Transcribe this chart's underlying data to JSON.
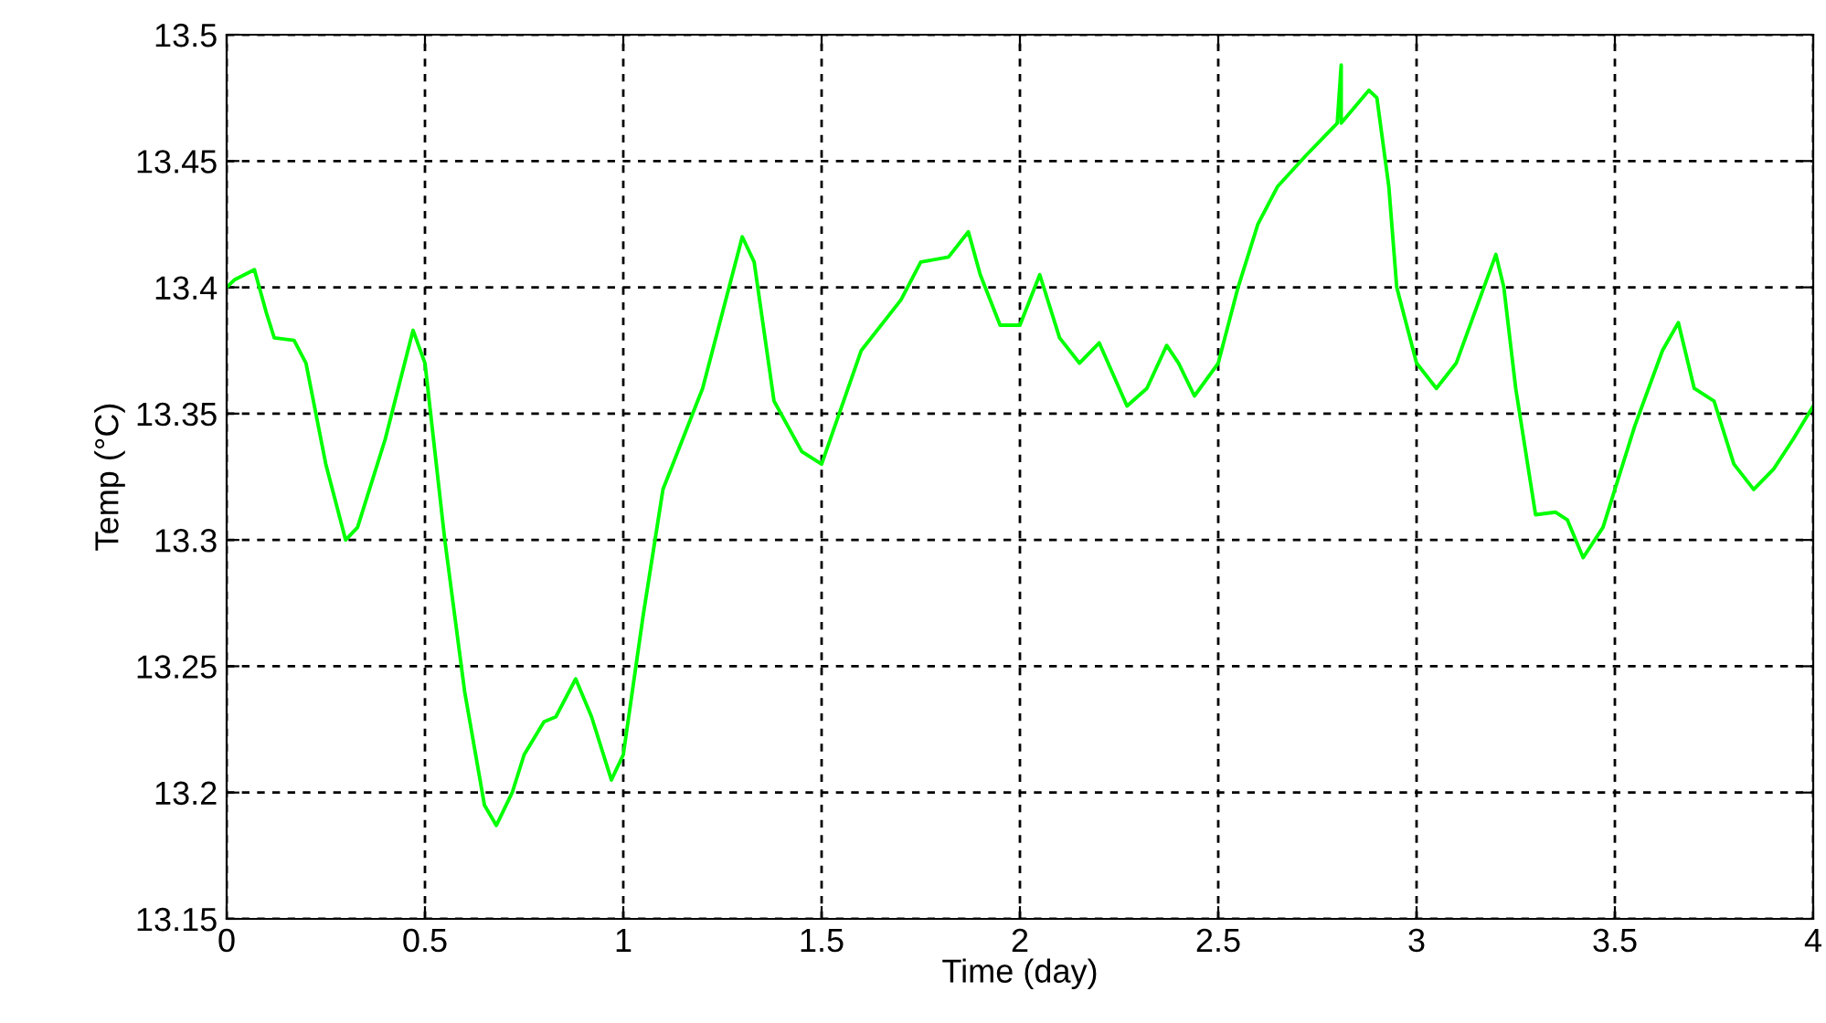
{
  "chart_data": {
    "type": "line",
    "xlabel": "Time (day)",
    "ylabel": "Temp (°C)",
    "xlim": [
      0,
      4
    ],
    "xticks": [
      0,
      0.5,
      1,
      1.5,
      2,
      2.5,
      3,
      3.5,
      4
    ],
    "ylim": [
      13.15,
      13.5
    ],
    "yticks": [
      13.15,
      13.2,
      13.25,
      13.3,
      13.35,
      13.4,
      13.45,
      13.5
    ],
    "grid": true,
    "line_style": "solid",
    "marker": "none",
    "series": [
      {
        "color": "#00ff00",
        "x": [
          0,
          0.02,
          0.07,
          0.1,
          0.12,
          0.17,
          0.2,
          0.25,
          0.3,
          0.33,
          0.4,
          0.47,
          0.5,
          0.55,
          0.6,
          0.65,
          0.68,
          0.72,
          0.75,
          0.8,
          0.83,
          0.88,
          0.92,
          0.97,
          1.0,
          1.05,
          1.1,
          1.2,
          1.3,
          1.33,
          1.38,
          1.45,
          1.5,
          1.6,
          1.7,
          1.75,
          1.82,
          1.87,
          1.9,
          1.95,
          2.0,
          2.05,
          2.1,
          2.15,
          2.2,
          2.27,
          2.32,
          2.37,
          2.4,
          2.44,
          2.5,
          2.55,
          2.6,
          2.65,
          2.72,
          2.8,
          2.81,
          2.81,
          2.88,
          2.9,
          2.93,
          2.95,
          3.0,
          3.05,
          3.1,
          3.2,
          3.22,
          3.25,
          3.3,
          3.35,
          3.38,
          3.42,
          3.47,
          3.55,
          3.62,
          3.66,
          3.7,
          3.75,
          3.8,
          3.85,
          3.9,
          3.95,
          4.0
        ],
        "values": [
          13.4,
          13.403,
          13.407,
          13.39,
          13.38,
          13.379,
          13.37,
          13.33,
          13.3,
          13.305,
          13.34,
          13.383,
          13.37,
          13.3,
          13.24,
          13.195,
          13.187,
          13.2,
          13.215,
          13.228,
          13.23,
          13.245,
          13.23,
          13.205,
          13.215,
          13.27,
          13.32,
          13.36,
          13.42,
          13.41,
          13.355,
          13.335,
          13.33,
          13.375,
          13.395,
          13.41,
          13.412,
          13.422,
          13.405,
          13.385,
          13.385,
          13.405,
          13.38,
          13.37,
          13.378,
          13.353,
          13.36,
          13.377,
          13.37,
          13.357,
          13.37,
          13.4,
          13.425,
          13.44,
          13.452,
          13.465,
          13.488,
          13.465,
          13.478,
          13.475,
          13.44,
          13.4,
          13.37,
          13.36,
          13.37,
          13.413,
          13.4,
          13.36,
          13.31,
          13.311,
          13.308,
          13.293,
          13.305,
          13.345,
          13.375,
          13.386,
          13.36,
          13.355,
          13.33,
          13.32,
          13.328,
          13.34,
          13.353
        ]
      }
    ]
  }
}
